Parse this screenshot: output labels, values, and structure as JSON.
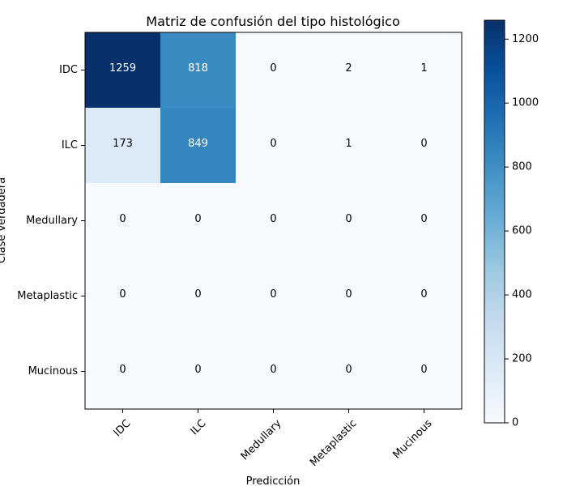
{
  "chart_data": {
    "type": "heatmap",
    "title": "Matriz de confusión del tipo histológico",
    "xlabel": "Predicción",
    "ylabel": "Clase verdadera",
    "x_categories": [
      "IDC",
      "ILC",
      "Medullary",
      "Metaplastic",
      "Mucinous"
    ],
    "y_categories": [
      "IDC",
      "ILC",
      "Medullary",
      "Metaplastic",
      "Mucinous"
    ],
    "values": [
      [
        1259,
        818,
        0,
        2,
        1
      ],
      [
        173,
        849,
        0,
        1,
        0
      ],
      [
        0,
        0,
        0,
        0,
        0
      ],
      [
        0,
        0,
        0,
        0,
        0
      ],
      [
        0,
        0,
        0,
        0,
        0
      ]
    ],
    "colormap": "Blues",
    "vmin": 0,
    "vmax": 1259,
    "colorbar_ticks": [
      0,
      200,
      400,
      600,
      800,
      1000,
      1200
    ],
    "grid": false,
    "legend": "colorbar-right"
  }
}
